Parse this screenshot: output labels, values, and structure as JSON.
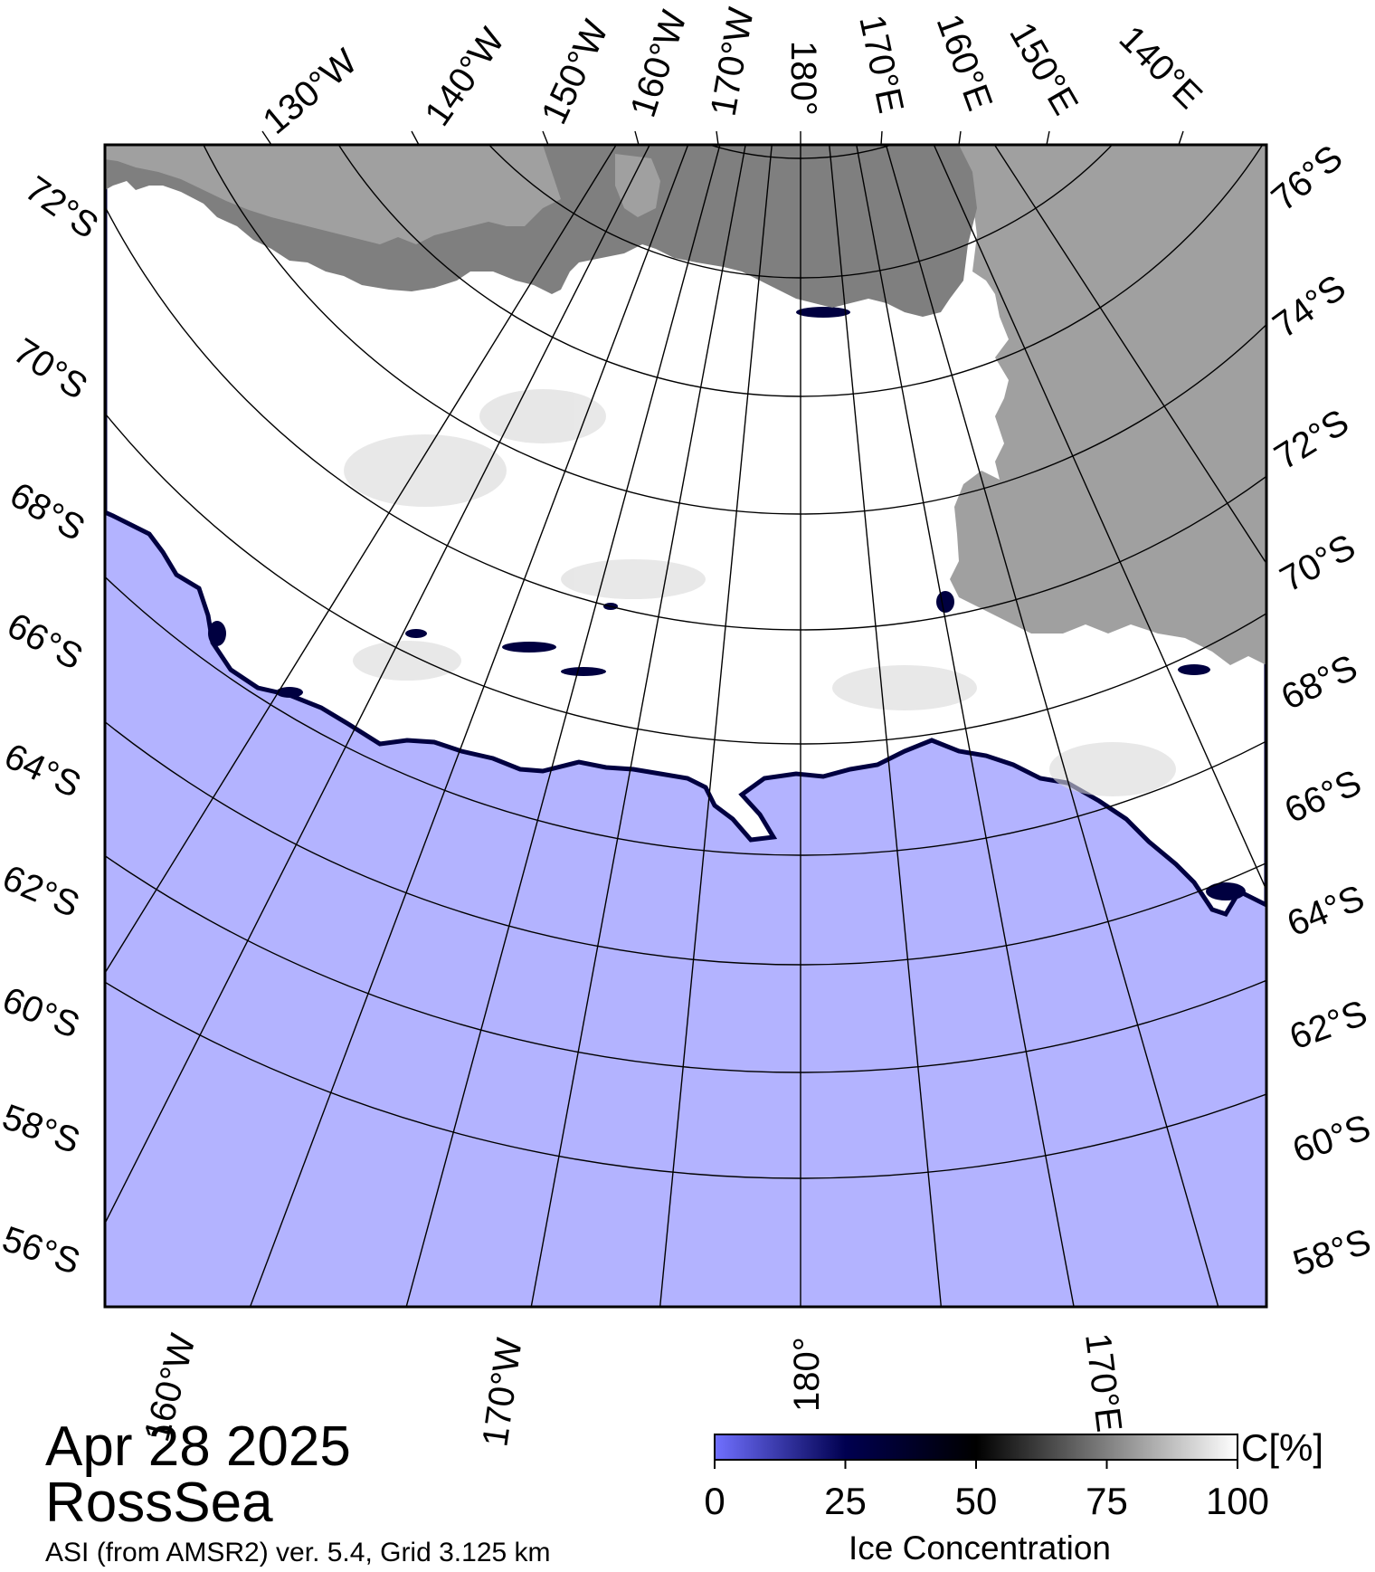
{
  "caption": {
    "date": "Apr 28 2025",
    "region": "RossSea",
    "product": "ASI (from AMSR2) ver. 5.4,  Grid 3.125 km"
  },
  "colors": {
    "open_water": "#b3b3ff",
    "land": "#a0a0a0",
    "ice_shelf": "#7f7f7f",
    "ice_full": "#ffffff",
    "ice_edge": "#000040",
    "frame": "#000000"
  },
  "map": {
    "top_longitude_labels": [
      "130°W",
      "140°W",
      "150°W",
      "160°W",
      "170°W",
      "180°",
      "170°E",
      "160°E",
      "150°E",
      "140°E"
    ],
    "bottom_longitude_labels": [
      "160°W",
      "170°W",
      "180°",
      "170°E"
    ],
    "left_latitude_labels": [
      "72°S",
      "70°S",
      "68°S",
      "66°S",
      "64°S",
      "62°S",
      "60°S",
      "58°S",
      "56°S"
    ],
    "right_latitude_labels": [
      "76°S",
      "74°S",
      "72°S",
      "70°S",
      "68°S",
      "66°S",
      "64°S",
      "62°S",
      "60°S",
      "58°S"
    ]
  },
  "colorbar": {
    "ticks": [
      "0",
      "25",
      "50",
      "75",
      "100"
    ],
    "unit": "C[%]",
    "title": "Ice Concentration",
    "stops": [
      "#7070ff",
      "#000050",
      "#000000",
      "#808080",
      "#ffffff"
    ]
  }
}
